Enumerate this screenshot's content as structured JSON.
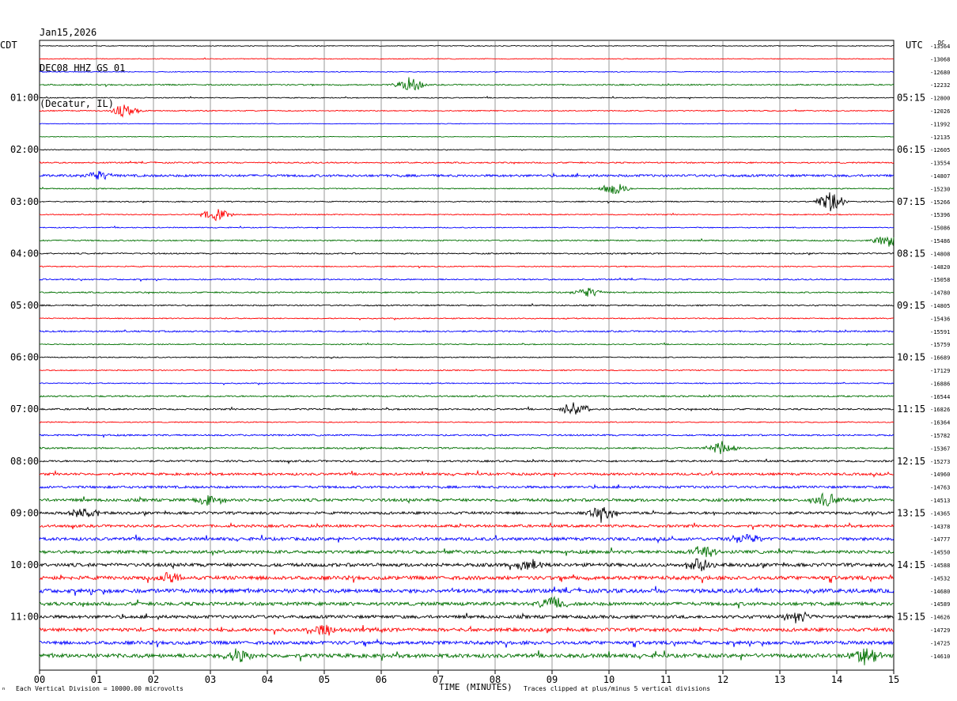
{
  "header": {
    "date": "Jan15,2026",
    "station": "DEC08 HHZ GS 01",
    "location": "(Decatur, IL)"
  },
  "left_timezone": "CDT",
  "right_timezone": "UTC",
  "corner_label": "DC",
  "footer": {
    "scale_note": "Each Vertical Division = 10000.00 microvolts",
    "clip_note": "Traces clipped at plus/minus 5 vertical divisions",
    "corner_mark": "ⁿ"
  },
  "colors": {
    "cycle": [
      "#000000",
      "#ff0000",
      "#0000ff",
      "#007000"
    ],
    "grid": "#808080"
  },
  "chart_data": {
    "type": "line",
    "xlabel": "TIME (MINUTES)",
    "xlim": [
      0,
      15
    ],
    "x_ticks": [
      "00",
      "01",
      "02",
      "03",
      "04",
      "05",
      "06",
      "07",
      "08",
      "09",
      "10",
      "11",
      "12",
      "13",
      "14",
      "15"
    ],
    "left_hour_labels": [
      "01:00",
      "02:00",
      "03:00",
      "04:00",
      "05:00",
      "06:00",
      "07:00",
      "08:00",
      "09:00",
      "10:00",
      "11:00"
    ],
    "right_hour_labels": [
      "05:15",
      "06:15",
      "07:15",
      "08:15",
      "09:15",
      "10:15",
      "11:15",
      "12:15",
      "13:15",
      "14:15",
      "15:15"
    ],
    "trace_count": 48,
    "trace_offsets": [
      "-13564",
      "-13068",
      "-12680",
      "-12232",
      "-12800",
      "-12026",
      "-11992",
      "-12135",
      "-12605",
      "-13554",
      "-14807",
      "-15230",
      "-15266",
      "-15396",
      "-15086",
      "-15486",
      "-14808",
      "-14820",
      "-15058",
      "-14780",
      "-14805",
      "-15436",
      "-15591",
      "-15759",
      "-16689",
      "-17129",
      "-16886",
      "-16544",
      "-16826",
      "-16364",
      "-15782",
      "-15367",
      "-15273",
      "-14960",
      "-14763",
      "-14513",
      "-14365",
      "-14378",
      "-14777",
      "-14550",
      "-14588",
      "-14532",
      "-14680",
      "-14589",
      "-14626",
      "-14729",
      "-14725",
      "-14610"
    ],
    "trace_activity": [
      0.15,
      0.15,
      0.15,
      0.25,
      0.18,
      0.2,
      0.12,
      0.12,
      0.15,
      0.25,
      0.45,
      0.2,
      0.2,
      0.2,
      0.18,
      0.25,
      0.25,
      0.2,
      0.25,
      0.25,
      0.25,
      0.2,
      0.3,
      0.2,
      0.2,
      0.2,
      0.2,
      0.3,
      0.3,
      0.2,
      0.3,
      0.3,
      0.35,
      0.45,
      0.45,
      0.55,
      0.5,
      0.5,
      0.6,
      0.6,
      0.65,
      0.7,
      0.75,
      0.65,
      0.6,
      0.65,
      0.65,
      0.75
    ],
    "events": [
      {
        "trace": 3,
        "minute": 6.5,
        "amplitude": 3.0
      },
      {
        "trace": 5,
        "minute": 1.5,
        "amplitude": 2.5
      },
      {
        "trace": 10,
        "minute": 1.0,
        "amplitude": 2.0
      },
      {
        "trace": 11,
        "minute": 10.1,
        "amplitude": 2.5
      },
      {
        "trace": 12,
        "minute": 13.9,
        "amplitude": 4.0
      },
      {
        "trace": 13,
        "minute": 3.1,
        "amplitude": 2.5
      },
      {
        "trace": 15,
        "minute": 14.9,
        "amplitude": 2.5
      },
      {
        "trace": 19,
        "minute": 9.6,
        "amplitude": 2.0
      },
      {
        "trace": 28,
        "minute": 9.4,
        "amplitude": 3.0
      },
      {
        "trace": 31,
        "minute": 12.0,
        "amplitude": 3.0
      },
      {
        "trace": 35,
        "minute": 13.8,
        "amplitude": 3.0
      },
      {
        "trace": 35,
        "minute": 3.0,
        "amplitude": 2.5
      },
      {
        "trace": 36,
        "minute": 9.9,
        "amplitude": 3.0
      },
      {
        "trace": 36,
        "minute": 0.8,
        "amplitude": 2.5
      },
      {
        "trace": 38,
        "minute": 12.4,
        "amplitude": 2.5
      },
      {
        "trace": 39,
        "minute": 11.7,
        "amplitude": 3.0
      },
      {
        "trace": 40,
        "minute": 11.6,
        "amplitude": 3.0
      },
      {
        "trace": 40,
        "minute": 8.6,
        "amplitude": 2.5
      },
      {
        "trace": 41,
        "minute": 2.3,
        "amplitude": 2.5
      },
      {
        "trace": 43,
        "minute": 9.0,
        "amplitude": 3.0
      },
      {
        "trace": 44,
        "minute": 13.3,
        "amplitude": 2.5
      },
      {
        "trace": 45,
        "minute": 5.0,
        "amplitude": 2.5
      },
      {
        "trace": 47,
        "minute": 14.5,
        "amplitude": 3.5
      },
      {
        "trace": 47,
        "minute": 3.5,
        "amplitude": 3.0
      }
    ]
  }
}
